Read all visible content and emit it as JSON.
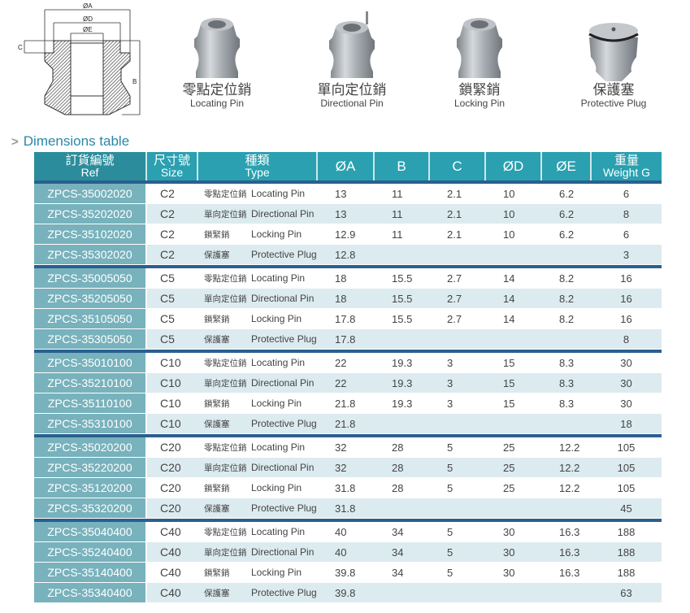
{
  "diagram": {
    "labels": {
      "a": "ØA",
      "d": "ØD",
      "e": "ØE",
      "c": "C",
      "b": "B"
    }
  },
  "products": [
    {
      "cn": "零點定位銷",
      "en": "Locating Pin",
      "icon": "locating-pin-image"
    },
    {
      "cn": "單向定位銷",
      "en": "Directional Pin",
      "icon": "directional-pin-image"
    },
    {
      "cn": "鎖緊銷",
      "en": "Locking Pin",
      "icon": "locking-pin-image"
    },
    {
      "cn": "保護塞",
      "en": "Protective Plug",
      "icon": "protective-plug-image"
    }
  ],
  "heading": "Dimensions table",
  "headers": {
    "ref_cn": "訂貨編號",
    "ref_en": "Ref",
    "size_cn": "尺寸號",
    "size_en": "Size",
    "type_cn": "種類",
    "type_en": "Type",
    "a": "ØA",
    "b": "B",
    "c": "C",
    "d": "ØD",
    "e": "ØE",
    "w_cn": "重量",
    "w_en": "Weight G"
  },
  "groups": [
    [
      [
        "ZPCS-35002020",
        "C2",
        "零點定位銷",
        "Locating Pin",
        "13",
        "11",
        "2.1",
        "10",
        "6.2",
        "6"
      ],
      [
        "ZPCS-35202020",
        "C2",
        "單向定位銷",
        "Directional Pin",
        "13",
        "11",
        "2.1",
        "10",
        "6.2",
        "8"
      ],
      [
        "ZPCS-35102020",
        "C2",
        "鎖緊銷",
        "Locking Pin",
        "12.9",
        "11",
        "2.1",
        "10",
        "6.2",
        "6"
      ],
      [
        "ZPCS-35302020",
        "C2",
        "保護塞",
        "Protective Plug",
        "12.8",
        "",
        "",
        "",
        "",
        "3"
      ]
    ],
    [
      [
        "ZPCS-35005050",
        "C5",
        "零點定位銷",
        "Locating Pin",
        "18",
        "15.5",
        "2.7",
        "14",
        "8.2",
        "16"
      ],
      [
        "ZPCS-35205050",
        "C5",
        "單向定位銷",
        "Directional Pin",
        "18",
        "15.5",
        "2.7",
        "14",
        "8.2",
        "16"
      ],
      [
        "ZPCS-35105050",
        "C5",
        "鎖緊銷",
        "Locking Pin",
        "17.8",
        "15.5",
        "2.7",
        "14",
        "8.2",
        "16"
      ],
      [
        "ZPCS-35305050",
        "C5",
        "保護塞",
        "Protective Plug",
        "17.8",
        "",
        "",
        "",
        "",
        "8"
      ]
    ],
    [
      [
        "ZPCS-35010100",
        "C10",
        "零點定位銷",
        "Locating Pin",
        "22",
        "19.3",
        "3",
        "15",
        "8.3",
        "30"
      ],
      [
        "ZPCS-35210100",
        "C10",
        "單向定位銷",
        "Directional Pin",
        "22",
        "19.3",
        "3",
        "15",
        "8.3",
        "30"
      ],
      [
        "ZPCS-35110100",
        "C10",
        "鎖緊銷",
        "Locking Pin",
        "21.8",
        "19.3",
        "3",
        "15",
        "8.3",
        "30"
      ],
      [
        "ZPCS-35310100",
        "C10",
        "保護塞",
        "Protective Plug",
        "21.8",
        "",
        "",
        "",
        "",
        "18"
      ]
    ],
    [
      [
        "ZPCS-35020200",
        "C20",
        "零點定位銷",
        "Locating Pin",
        "32",
        "28",
        "5",
        "25",
        "12.2",
        "105"
      ],
      [
        "ZPCS-35220200",
        "C20",
        "單向定位銷",
        "Directional Pin",
        "32",
        "28",
        "5",
        "25",
        "12.2",
        "105"
      ],
      [
        "ZPCS-35120200",
        "C20",
        "鎖緊銷",
        "Locking Pin",
        "31.8",
        "28",
        "5",
        "25",
        "12.2",
        "105"
      ],
      [
        "ZPCS-35320200",
        "C20",
        "保護塞",
        "Protective Plug",
        "31.8",
        "",
        "",
        "",
        "",
        "45"
      ]
    ],
    [
      [
        "ZPCS-35040400",
        "C40",
        "零點定位銷",
        "Locating Pin",
        "40",
        "34",
        "5",
        "30",
        "16.3",
        "188"
      ],
      [
        "ZPCS-35240400",
        "C40",
        "單向定位銷",
        "Directional Pin",
        "40",
        "34",
        "5",
        "30",
        "16.3",
        "188"
      ],
      [
        "ZPCS-35140400",
        "C40",
        "鎖緊銷",
        "Locking Pin",
        "39.8",
        "34",
        "5",
        "30",
        "16.3",
        "188"
      ],
      [
        "ZPCS-35340400",
        "C40",
        "保護塞",
        "Protective Plug",
        "39.8",
        "",
        "",
        "",
        "",
        "63"
      ]
    ]
  ]
}
